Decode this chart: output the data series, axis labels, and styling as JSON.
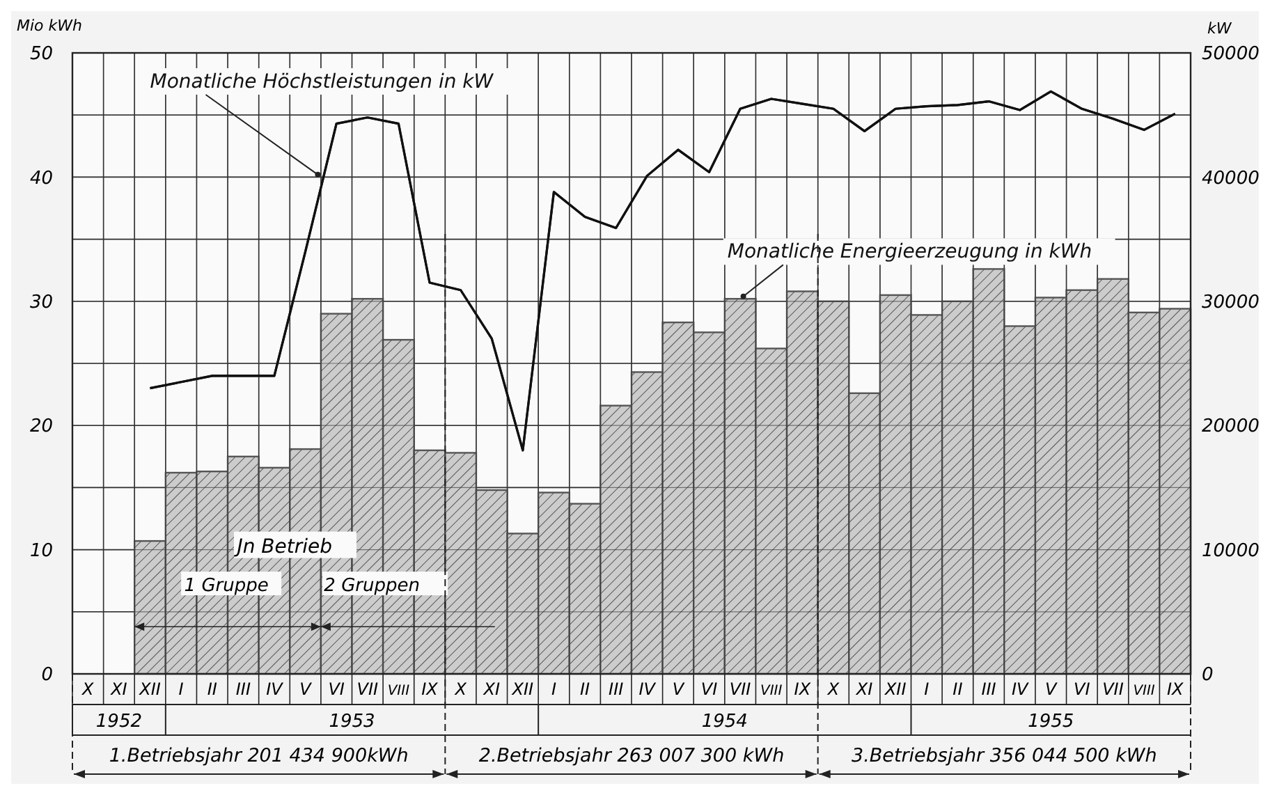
{
  "chart_data": {
    "type": "bar",
    "ylabel": "Mio kWh",
    "y2label": "kW",
    "categories": [
      "X",
      "XI",
      "XII",
      "I",
      "II",
      "III",
      "IV",
      "V",
      "VI",
      "VII",
      "VIII",
      "IX",
      "X",
      "XI",
      "XII",
      "I",
      "II",
      "III",
      "IV",
      "V",
      "VI",
      "VII",
      "VIII",
      "IX",
      "X",
      "XI",
      "XII",
      "I",
      "II",
      "III",
      "IV",
      "V",
      "VI",
      "VII",
      "VIII",
      "IX"
    ],
    "series": [
      {
        "name": "Monatliche Energieerzeugung in kWh",
        "color": "#555555",
        "values": [
          null,
          null,
          10.7,
          16.2,
          16.3,
          17.5,
          16.6,
          18.1,
          29.0,
          30.2,
          26.9,
          18.0,
          17.8,
          14.8,
          11.3,
          14.6,
          13.7,
          21.6,
          24.3,
          28.3,
          27.5,
          30.2,
          26.2,
          30.8,
          30.0,
          22.6,
          30.5,
          28.9,
          30.0,
          32.6,
          28.0,
          30.3,
          30.9,
          31.8,
          29.1,
          29.4
        ]
      },
      {
        "name": "Monatliche Höchstleistungen in kW",
        "type": "line",
        "axis": "y2",
        "color": "#111111",
        "values": [
          null,
          null,
          23000,
          23500,
          24000,
          24000,
          24000,
          34000,
          44300,
          44800,
          44300,
          31500,
          30900,
          27000,
          18000,
          38800,
          36800,
          35900,
          40100,
          42200,
          40400,
          45500,
          46300,
          45900,
          45500,
          43700,
          45500,
          45700,
          45800,
          46100,
          45400,
          46900,
          45500,
          44700,
          43800,
          45100
        ]
      }
    ],
    "ylim": [
      0,
      50
    ],
    "yticks": [
      0,
      {
        "value": 5,
        "label": null
      },
      10,
      {
        "value": 15,
        "label": null
      },
      20,
      {
        "value": 25,
        "label": null
      },
      30,
      {
        "value": 35,
        "label": null
      },
      40,
      {
        "value": 45,
        "label": null
      },
      50
    ],
    "y2lim": [
      0,
      50000
    ],
    "y2ticks": [
      0,
      10000,
      20000,
      30000,
      40000,
      50000
    ],
    "grid": true,
    "legend": false,
    "annotations": [
      "Jn Betrieb",
      "1 Gruppe",
      "2 Gruppen",
      "1952",
      "1953",
      "1954",
      "1955",
      "1.Betriebsjahr 201 434 900kWh",
      "2.Betriebsjahr 263 007 300 kWh",
      "3.Betriebsjahr 356 044 500 kWh"
    ]
  }
}
